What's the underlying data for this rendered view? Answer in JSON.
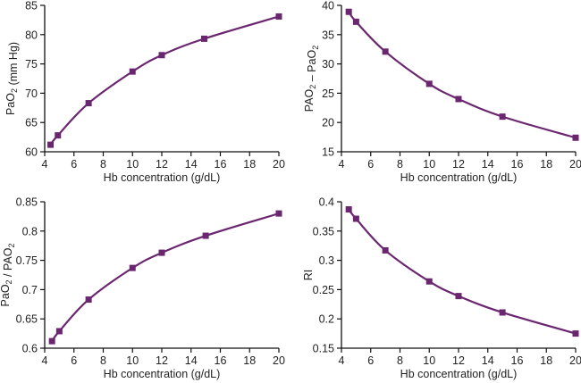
{
  "style": {
    "series_color": "#6b2670",
    "axis_color": "#111111",
    "text_color": "#222222"
  },
  "chart_data": [
    {
      "id": "pao2",
      "type": "line",
      "title": "",
      "xlabel": "Hb concentration (g/dL)",
      "ylabel": "PaO2 (mm Hg)",
      "ylabel_parts": [
        {
          "t": "PaO"
        },
        {
          "t": "2",
          "sub": true
        },
        {
          "t": " (mm Hg)"
        }
      ],
      "xlim": [
        4,
        20
      ],
      "ylim": [
        60,
        85
      ],
      "xticks": [
        4,
        6,
        8,
        10,
        12,
        14,
        16,
        18,
        20
      ],
      "yticks": [
        60,
        65,
        70,
        75,
        80,
        85
      ],
      "ytick_labels": [
        "60",
        "65",
        "70",
        "75",
        "80",
        "85"
      ],
      "grid": false,
      "marker": "square",
      "x": [
        4.4,
        4.9,
        7,
        10,
        12,
        14.9,
        20
      ],
      "y": [
        61.2,
        62.8,
        68.3,
        73.7,
        76.5,
        79.3,
        83.1
      ]
    },
    {
      "id": "gradient",
      "type": "line",
      "title": "",
      "xlabel": "Hb concentration (g/dL)",
      "ylabel": "PAO2 − PaO2",
      "ylabel_parts": [
        {
          "t": "PAO"
        },
        {
          "t": "2",
          "sub": true
        },
        {
          "t": " – PaO"
        },
        {
          "t": "2",
          "sub": true
        }
      ],
      "xlim": [
        4,
        20
      ],
      "ylim": [
        15,
        40
      ],
      "xticks": [
        4,
        6,
        8,
        10,
        12,
        14,
        16,
        18,
        20
      ],
      "yticks": [
        15,
        20,
        25,
        30,
        35,
        40
      ],
      "ytick_labels": [
        "15",
        "20",
        "25",
        "30",
        "35",
        "40"
      ],
      "grid": false,
      "marker": "square",
      "x": [
        4.5,
        5,
        7,
        10,
        12,
        15,
        20
      ],
      "y": [
        38.9,
        37.2,
        32.1,
        26.6,
        24.0,
        21.0,
        17.4
      ]
    },
    {
      "id": "ratio",
      "type": "line",
      "title": "",
      "xlabel": "Hb concentration (g/dL)",
      "ylabel": "PaO2 / PAO2",
      "ylabel_parts": [
        {
          "t": "PaO"
        },
        {
          "t": "2",
          "sub": true
        },
        {
          "t": " / PAO"
        },
        {
          "t": "2",
          "sub": true
        }
      ],
      "xlim": [
        4,
        20
      ],
      "ylim": [
        0.6,
        0.85
      ],
      "xticks": [
        4,
        6,
        8,
        10,
        12,
        14,
        16,
        18,
        20
      ],
      "yticks": [
        0.6,
        0.65,
        0.7,
        0.75,
        0.8,
        0.85
      ],
      "ytick_labels": [
        "0.6",
        "0.65",
        "0.7",
        "0.75",
        "0.8",
        "0.85"
      ],
      "grid": false,
      "marker": "square",
      "x": [
        4.5,
        5,
        7,
        10,
        12,
        15,
        20
      ],
      "y": [
        0.612,
        0.629,
        0.683,
        0.737,
        0.763,
        0.792,
        0.83
      ]
    },
    {
      "id": "ri",
      "type": "line",
      "title": "",
      "xlabel": "Hb concentration (g/dL)",
      "ylabel": "RI",
      "ylabel_parts": [
        {
          "t": "RI"
        }
      ],
      "xlim": [
        4,
        20
      ],
      "ylim": [
        0.15,
        0.4
      ],
      "xticks": [
        4,
        6,
        8,
        10,
        12,
        14,
        16,
        18,
        20
      ],
      "yticks": [
        0.15,
        0.2,
        0.25,
        0.3,
        0.35,
        0.4
      ],
      "ytick_labels": [
        "0.15",
        "0.2",
        "0.25",
        "0.3",
        "0.35",
        "0.4"
      ],
      "grid": false,
      "marker": "square",
      "x": [
        4.5,
        5,
        7,
        10,
        12,
        15,
        20
      ],
      "y": [
        0.387,
        0.371,
        0.317,
        0.264,
        0.239,
        0.211,
        0.175
      ]
    }
  ]
}
